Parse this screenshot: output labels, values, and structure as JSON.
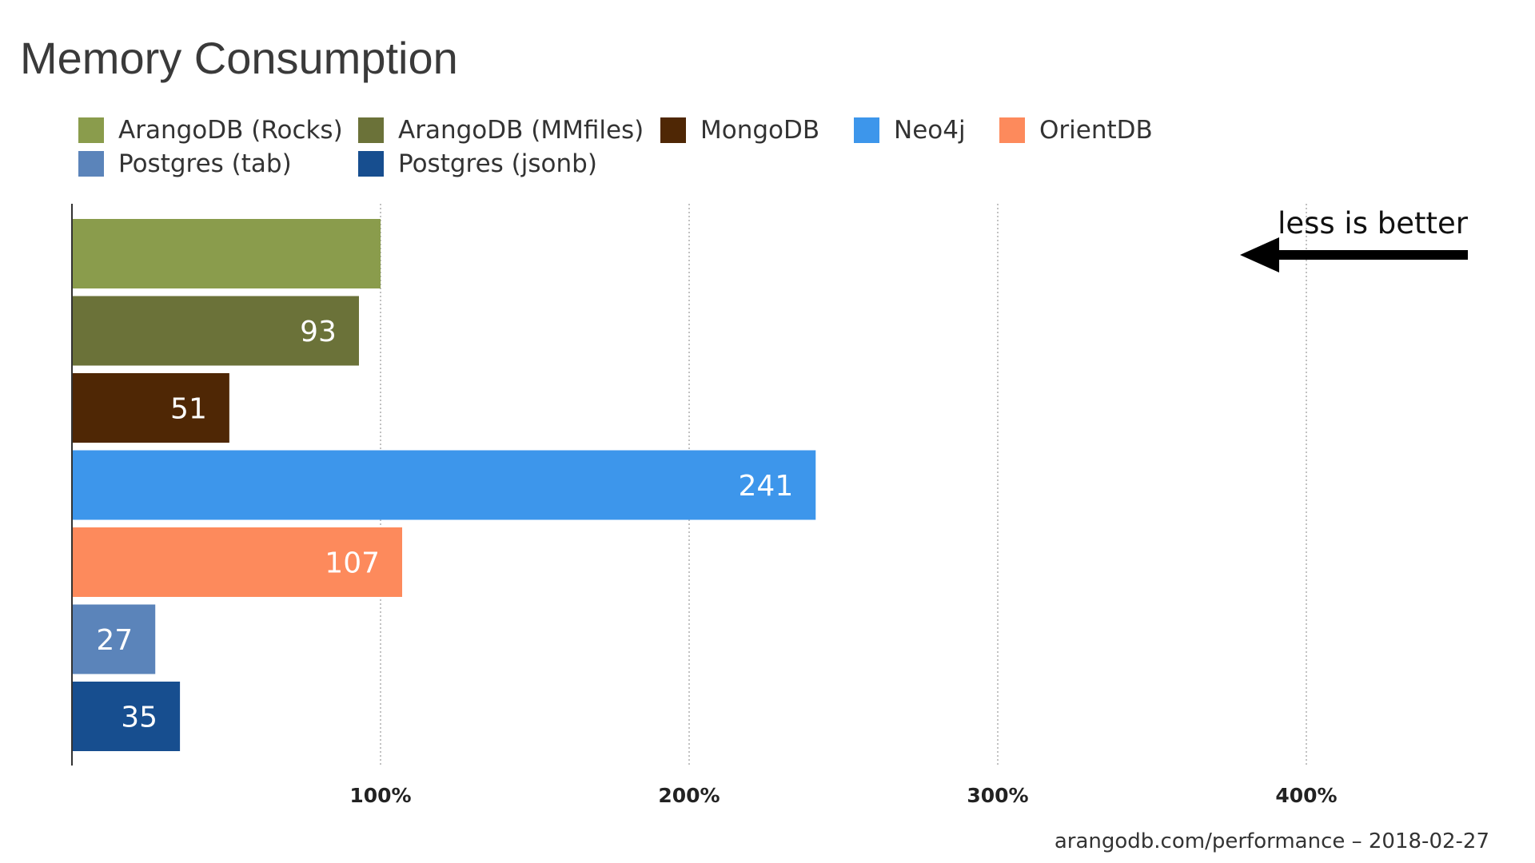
{
  "chart_data": {
    "type": "bar",
    "orientation": "horizontal",
    "title": "Memory Consumption",
    "categories": [
      "ArangoDB (Rocks)",
      "ArangoDB (MMfiles)",
      "MongoDB",
      "Neo4j",
      "OrientDB",
      "Postgres (tab)",
      "Postgres (jsonb)"
    ],
    "values": [
      100,
      93,
      51,
      241,
      107,
      27,
      35
    ],
    "data_labels": [
      "",
      "93",
      "51",
      "241",
      "107",
      "27",
      "35"
    ],
    "colors": [
      "#8a9c4c",
      "#6b7239",
      "#4f2705",
      "#3d96eb",
      "#fd8a5c",
      "#5b84ba",
      "#174e8f"
    ],
    "legend_placement": "top",
    "x_ticks": [
      {
        "value": 100,
        "label": "100%"
      },
      {
        "value": 200,
        "label": "200%"
      },
      {
        "value": 300,
        "label": "300%"
      },
      {
        "value": 400,
        "label": "400%"
      }
    ],
    "xlim": [
      0,
      450
    ],
    "grid": "vertical dotted",
    "annotation": "less is better",
    "footer": "arangodb.com/performance – 2018-02-27"
  }
}
